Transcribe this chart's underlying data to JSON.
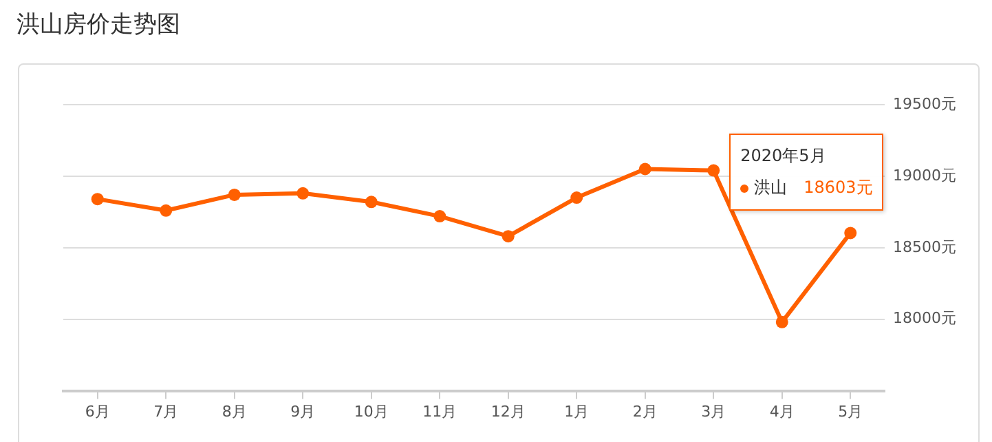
{
  "chart_data": {
    "type": "line",
    "title": "洪山房价走势图",
    "categories": [
      "6月",
      "7月",
      "8月",
      "9月",
      "10月",
      "11月",
      "12月",
      "1月",
      "2月",
      "3月",
      "4月",
      "5月"
    ],
    "series": [
      {
        "name": "洪山",
        "color": "#ff6000",
        "values": [
          18840,
          18760,
          18870,
          18880,
          18820,
          18720,
          18580,
          18850,
          19050,
          19040,
          17980,
          18603
        ],
        "value_labels": [
          null,
          null,
          null,
          null,
          null,
          null,
          null,
          null,
          null,
          null,
          null,
          "18603元"
        ]
      }
    ],
    "annotations": [
      "2020年5月"
    ],
    "ylim": [
      17500,
      19500
    ],
    "yticks": [
      {
        "value": 18000,
        "label": "18000元"
      },
      {
        "value": 18500,
        "label": "18500元"
      },
      {
        "value": 19000,
        "label": "19000元"
      },
      {
        "value": 19500,
        "label": "19500元"
      }
    ],
    "grid": "y",
    "marker": "circle",
    "line_style": "solid"
  }
}
